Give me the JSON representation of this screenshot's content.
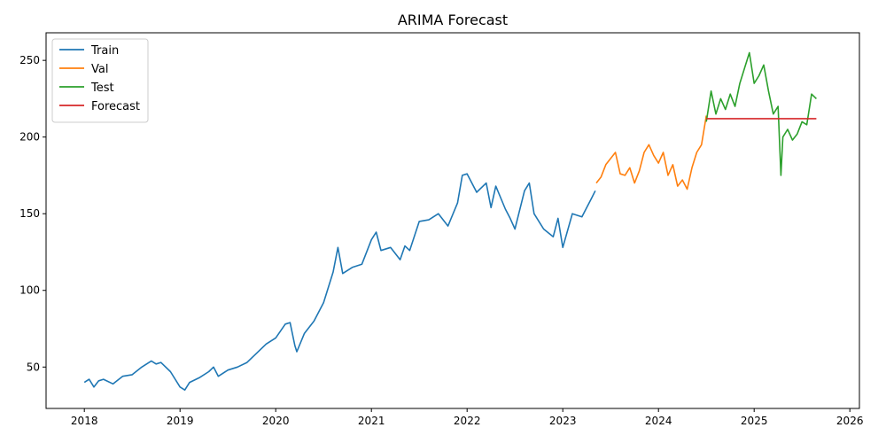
{
  "chart_data": {
    "type": "line",
    "title": "ARIMA Forecast",
    "xlabel": "",
    "ylabel": "",
    "xlim": [
      2017.6,
      2026.1
    ],
    "ylim": [
      23,
      268
    ],
    "x_ticks": [
      2018,
      2019,
      2020,
      2021,
      2022,
      2023,
      2024,
      2025,
      2026
    ],
    "y_ticks": [
      50,
      100,
      150,
      200,
      250
    ],
    "grid": false,
    "legend": {
      "placement": "top-left"
    },
    "series": [
      {
        "name": "Train",
        "color": "#1f77b4",
        "x": [
          2018.0,
          2018.05,
          2018.1,
          2018.15,
          2018.2,
          2018.3,
          2018.4,
          2018.5,
          2018.6,
          2018.7,
          2018.75,
          2018.8,
          2018.9,
          2019.0,
          2019.05,
          2019.1,
          2019.2,
          2019.3,
          2019.35,
          2019.4,
          2019.45,
          2019.5,
          2019.6,
          2019.7,
          2019.8,
          2019.9,
          2020.0,
          2020.1,
          2020.15,
          2020.2,
          2020.22,
          2020.3,
          2020.4,
          2020.5,
          2020.6,
          2020.65,
          2020.7,
          2020.8,
          2020.9,
          2021.0,
          2021.05,
          2021.1,
          2021.2,
          2021.3,
          2021.35,
          2021.4,
          2021.5,
          2021.6,
          2021.7,
          2021.8,
          2021.9,
          2021.95,
          2022.0,
          2022.1,
          2022.2,
          2022.25,
          2022.3,
          2022.4,
          2022.45,
          2022.5,
          2022.6,
          2022.65,
          2022.7,
          2022.8,
          2022.9,
          2022.95,
          2023.0,
          2023.1,
          2023.2,
          2023.3,
          2023.34
        ],
        "values": [
          40,
          42,
          37,
          41,
          42,
          39,
          44,
          45,
          50,
          54,
          52,
          53,
          47,
          37,
          35,
          40,
          43,
          47,
          50,
          44,
          46,
          48,
          50,
          53,
          59,
          65,
          69,
          78,
          79,
          64,
          60,
          72,
          80,
          92,
          112,
          128,
          111,
          115,
          117,
          133,
          138,
          126,
          128,
          120,
          129,
          126,
          145,
          146,
          150,
          142,
          157,
          175,
          176,
          164,
          170,
          154,
          168,
          153,
          147,
          140,
          165,
          170,
          150,
          140,
          135,
          147,
          128,
          150,
          148,
          160,
          165
        ]
      },
      {
        "name": "Val",
        "color": "#ff7f0e",
        "x": [
          2023.35,
          2023.4,
          2023.45,
          2023.5,
          2023.55,
          2023.6,
          2023.65,
          2023.7,
          2023.75,
          2023.8,
          2023.85,
          2023.9,
          2023.95,
          2024.0,
          2024.05,
          2024.1,
          2024.15,
          2024.2,
          2024.25,
          2024.3,
          2024.35,
          2024.4,
          2024.45,
          2024.5
        ],
        "values": [
          170,
          174,
          182,
          186,
          190,
          176,
          175,
          180,
          170,
          178,
          190,
          195,
          188,
          183,
          190,
          175,
          182,
          168,
          172,
          166,
          180,
          190,
          195,
          214
        ]
      },
      {
        "name": "Test",
        "color": "#2ca02c",
        "x": [
          2024.5,
          2024.55,
          2024.6,
          2024.65,
          2024.7,
          2024.75,
          2024.8,
          2024.85,
          2024.9,
          2024.95,
          2025.0,
          2025.05,
          2025.1,
          2025.15,
          2025.2,
          2025.25,
          2025.28,
          2025.3,
          2025.35,
          2025.4,
          2025.45,
          2025.5,
          2025.55,
          2025.6,
          2025.65
        ],
        "values": [
          210,
          230,
          215,
          225,
          218,
          228,
          220,
          235,
          245,
          255,
          235,
          240,
          247,
          230,
          215,
          220,
          175,
          200,
          205,
          198,
          202,
          210,
          208,
          228,
          225
        ]
      },
      {
        "name": "Forecast",
        "color": "#d62728",
        "x": [
          2024.5,
          2025.65
        ],
        "values": [
          212,
          212
        ]
      }
    ]
  }
}
